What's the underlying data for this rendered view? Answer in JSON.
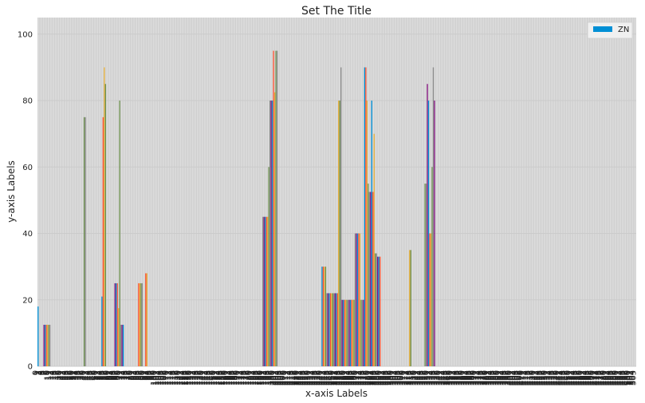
{
  "chart_data": {
    "type": "bar",
    "title": "Set The Title",
    "xlabel": "x-axis Labels",
    "ylabel": "y-axis Labels",
    "ylim": [
      0,
      105
    ],
    "yticks": [
      0,
      20,
      40,
      60,
      80,
      100
    ],
    "grid": true,
    "legend": {
      "placement": "top-right",
      "entries": [
        "ZN"
      ]
    },
    "series": [
      {
        "name": "ZN",
        "color": "#008fd5"
      }
    ],
    "bar_palette": [
      "#008fd5",
      "#fc4f30",
      "#e5ae38",
      "#6d904f",
      "#8b8b8b",
      "#810f7c"
    ],
    "category_count": 506,
    "bars": [
      {
        "i": 0,
        "v": 18
      },
      {
        "i": 5,
        "v": 12.5
      },
      {
        "i": 6,
        "v": 12.5
      },
      {
        "i": 7,
        "v": 12.5
      },
      {
        "i": 8,
        "v": 12.5
      },
      {
        "i": 9,
        "v": 12.5
      },
      {
        "i": 10,
        "v": 12.5
      },
      {
        "i": 39,
        "v": 75
      },
      {
        "i": 40,
        "v": 75
      },
      {
        "i": 54,
        "v": 21
      },
      {
        "i": 55,
        "v": 75
      },
      {
        "i": 56,
        "v": 90
      },
      {
        "i": 57,
        "v": 85
      },
      {
        "i": 65,
        "v": 25
      },
      {
        "i": 66,
        "v": 25
      },
      {
        "i": 67,
        "v": 25
      },
      {
        "i": 68,
        "v": 17.5
      },
      {
        "i": 69,
        "v": 80
      },
      {
        "i": 70,
        "v": 12.5
      },
      {
        "i": 71,
        "v": 12.5
      },
      {
        "i": 72,
        "v": 12.5
      },
      {
        "i": 85,
        "v": 25
      },
      {
        "i": 86,
        "v": 25
      },
      {
        "i": 87,
        "v": 25
      },
      {
        "i": 88,
        "v": 25
      },
      {
        "i": 91,
        "v": 28
      },
      {
        "i": 92,
        "v": 28
      },
      {
        "i": 190,
        "v": 45
      },
      {
        "i": 191,
        "v": 45
      },
      {
        "i": 192,
        "v": 45
      },
      {
        "i": 193,
        "v": 45
      },
      {
        "i": 194,
        "v": 45
      },
      {
        "i": 195,
        "v": 60
      },
      {
        "i": 196,
        "v": 80
      },
      {
        "i": 197,
        "v": 80
      },
      {
        "i": 198,
        "v": 80
      },
      {
        "i": 199,
        "v": 95
      },
      {
        "i": 200,
        "v": 82.5
      },
      {
        "i": 201,
        "v": 95
      },
      {
        "i": 202,
        "v": 95
      },
      {
        "i": 240,
        "v": 30
      },
      {
        "i": 241,
        "v": 30
      },
      {
        "i": 242,
        "v": 30
      },
      {
        "i": 243,
        "v": 30
      },
      {
        "i": 244,
        "v": 22
      },
      {
        "i": 245,
        "v": 22
      },
      {
        "i": 246,
        "v": 22
      },
      {
        "i": 247,
        "v": 22
      },
      {
        "i": 248,
        "v": 22
      },
      {
        "i": 249,
        "v": 22
      },
      {
        "i": 250,
        "v": 22
      },
      {
        "i": 251,
        "v": 22
      },
      {
        "i": 252,
        "v": 22
      },
      {
        "i": 253,
        "v": 22
      },
      {
        "i": 254,
        "v": 80
      },
      {
        "i": 255,
        "v": 80
      },
      {
        "i": 256,
        "v": 90
      },
      {
        "i": 257,
        "v": 20
      },
      {
        "i": 258,
        "v": 20
      },
      {
        "i": 259,
        "v": 20
      },
      {
        "i": 260,
        "v": 20
      },
      {
        "i": 261,
        "v": 20
      },
      {
        "i": 262,
        "v": 20
      },
      {
        "i": 263,
        "v": 20
      },
      {
        "i": 264,
        "v": 20
      },
      {
        "i": 265,
        "v": 20
      },
      {
        "i": 266,
        "v": 20
      },
      {
        "i": 267,
        "v": 20
      },
      {
        "i": 268,
        "v": 40
      },
      {
        "i": 269,
        "v": 40
      },
      {
        "i": 270,
        "v": 40
      },
      {
        "i": 271,
        "v": 40
      },
      {
        "i": 272,
        "v": 40
      },
      {
        "i": 273,
        "v": 20
      },
      {
        "i": 274,
        "v": 20
      },
      {
        "i": 275,
        "v": 20
      },
      {
        "i": 276,
        "v": 90
      },
      {
        "i": 277,
        "v": 90
      },
      {
        "i": 278,
        "v": 80
      },
      {
        "i": 279,
        "v": 55
      },
      {
        "i": 280,
        "v": 52.5
      },
      {
        "i": 281,
        "v": 52.5
      },
      {
        "i": 282,
        "v": 80
      },
      {
        "i": 283,
        "v": 52.5
      },
      {
        "i": 284,
        "v": 70
      },
      {
        "i": 285,
        "v": 34
      },
      {
        "i": 286,
        "v": 34
      },
      {
        "i": 287,
        "v": 33
      },
      {
        "i": 288,
        "v": 33
      },
      {
        "i": 289,
        "v": 33
      },
      {
        "i": 314,
        "v": 35
      },
      {
        "i": 315,
        "v": 35
      },
      {
        "i": 327,
        "v": 55
      },
      {
        "i": 328,
        "v": 55
      },
      {
        "i": 329,
        "v": 85
      },
      {
        "i": 330,
        "v": 80
      },
      {
        "i": 331,
        "v": 40
      },
      {
        "i": 332,
        "v": 40
      },
      {
        "i": 333,
        "v": 60
      },
      {
        "i": 334,
        "v": 90
      },
      {
        "i": 335,
        "v": 80
      }
    ]
  }
}
